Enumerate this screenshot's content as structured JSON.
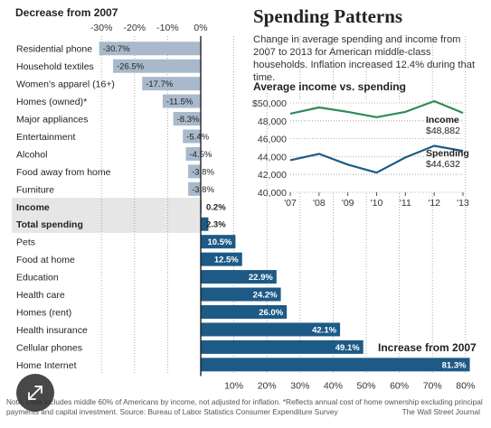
{
  "headings": {
    "decrease": "Decrease from 2007",
    "increase": "Increase from 2007"
  },
  "panel": {
    "title": "Spending Patterns",
    "subtitle": "Change in average spending and income from 2007 to 2013 for American middle-class households. Inflation increased 12.4% during that time.",
    "inset_title": "Average income vs. spending"
  },
  "footnote": {
    "note": "Note: Data includes middle 60% of Americans by income, not adjusted for inflation. *Reflects annual cost of home ownership excluding principal payments and capital investment.     Source:  Bureau of Labor Statistics Consumer Expenditure Survey",
    "brand": "The Wall Street Journal"
  },
  "colors": {
    "decrease_bar": "#a8b9cc",
    "increase_bar": "#1d5a86",
    "highlight_row": "#e6e6e6",
    "income_line": "#2e8b57",
    "spending_line": "#1d5a86"
  },
  "icons": {
    "expand": "expand-arrows-icon"
  },
  "chart_data": [
    {
      "type": "bar",
      "orientation": "horizontal",
      "x_ticks": [
        "-30%",
        "-20%",
        "-10%",
        "0%",
        "10%",
        "20%",
        "30%",
        "40%",
        "50%",
        "60%",
        "70%",
        "80%"
      ],
      "xlim": [
        -30,
        80
      ],
      "categories": [
        "Residential phone",
        "Household textiles",
        "Women's apparel (16+)",
        "Homes (owned)*",
        "Major appliances",
        "Entertainment",
        "Alcohol",
        "Food away from home",
        "Furniture",
        "Income",
        "Total spending",
        "Pets",
        "Food at home",
        "Education",
        "Health care",
        "Homes (rent)",
        "Health insurance",
        "Cellular phones",
        "Home Internet"
      ],
      "values": [
        -30.7,
        -26.5,
        -17.7,
        -11.5,
        -8.3,
        -5.4,
        -4.5,
        -3.8,
        -3.8,
        0.2,
        2.3,
        10.5,
        12.5,
        22.9,
        24.2,
        26.0,
        42.1,
        49.1,
        81.3
      ],
      "value_labels": [
        "-30.7%",
        "-26.5%",
        "-17.7%",
        "-11.5%",
        "-8.3%",
        "-5.4%",
        "-4.5%",
        "-3.8%",
        "-3.8%",
        "0.2%",
        "2.3%",
        "10.5%",
        "12.5%",
        "22.9%",
        "24.2%",
        "26.0%",
        "42.1%",
        "49.1%",
        "81.3%"
      ],
      "highlighted_rows": [
        "Income",
        "Total spending"
      ]
    },
    {
      "type": "line",
      "title": "Average income vs. spending",
      "x": [
        "'07",
        "'08",
        "'09",
        "'10",
        "'11",
        "'12",
        "'13"
      ],
      "y_ticks": [
        "$50,000",
        "48,000",
        "46,000",
        "44,000",
        "42,000",
        "40,000"
      ],
      "ylim": [
        40000,
        50000
      ],
      "series": [
        {
          "name": "Income",
          "values": [
            48800,
            49500,
            49000,
            48400,
            49000,
            50200,
            48882
          ],
          "end_label": "$48,882"
        },
        {
          "name": "Spending",
          "values": [
            43600,
            44300,
            43100,
            42200,
            43900,
            45200,
            44632
          ],
          "end_label": "$44,632"
        }
      ]
    }
  ]
}
